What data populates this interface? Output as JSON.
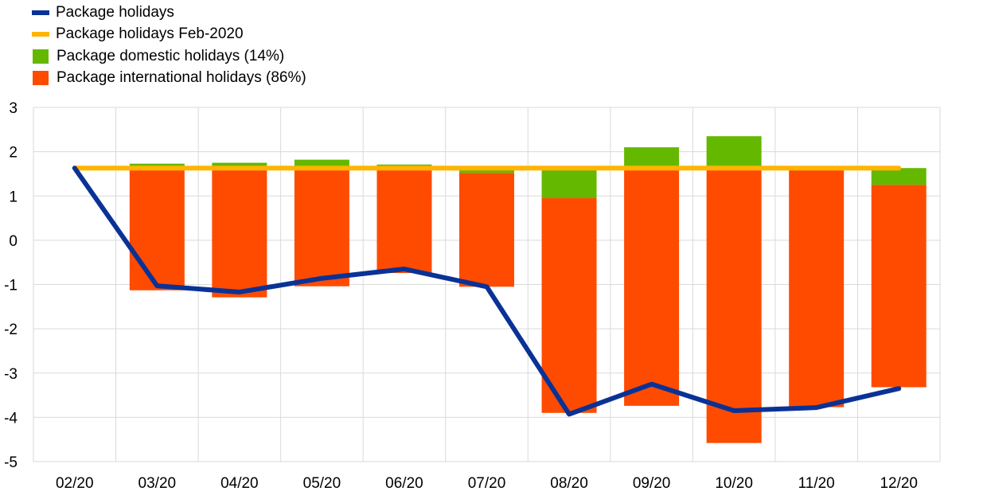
{
  "colors": {
    "package_holidays": "#0a3296",
    "feb2020": "#ffb400",
    "domestic": "#65b800",
    "international": "#ff4b00",
    "grid": "#d9d9d9"
  },
  "legend": [
    {
      "label": "Package holidays",
      "kind": "line",
      "color_key": "package_holidays"
    },
    {
      "label": "Package holidays Feb-2020",
      "kind": "line",
      "color_key": "feb2020"
    },
    {
      "label": "Package domestic holidays (14%)",
      "kind": "box",
      "color_key": "domestic"
    },
    {
      "label": "Package international holidays (86%)",
      "kind": "box",
      "color_key": "international"
    }
  ],
  "chart_data": {
    "type": "bar",
    "categories": [
      "02/20",
      "03/20",
      "04/20",
      "05/20",
      "06/20",
      "07/20",
      "08/20",
      "09/20",
      "10/20",
      "11/20",
      "12/20"
    ],
    "ylim": [
      -5,
      3
    ],
    "yticks": [
      3,
      2,
      1,
      0,
      -1,
      -2,
      -3,
      -4,
      -5
    ],
    "grid": true,
    "legend_position": "top-left",
    "series": [
      {
        "name": "Package domestic holidays (14%)",
        "kind": "bar-segment",
        "starts": [
          null,
          1.65,
          1.65,
          1.65,
          1.65,
          1.52,
          0.95,
          1.68,
          1.68,
          1.62,
          1.25
        ],
        "ends": [
          null,
          1.73,
          1.75,
          1.82,
          1.71,
          1.62,
          1.62,
          2.1,
          2.35,
          1.62,
          1.63
        ]
      },
      {
        "name": "Package international holidays (86%)",
        "kind": "bar-segment",
        "starts": [
          null,
          -1.13,
          -1.29,
          -1.04,
          -0.74,
          -1.05,
          -3.9,
          -3.74,
          -4.58,
          -3.77,
          -3.32
        ],
        "ends": [
          null,
          1.65,
          1.65,
          1.65,
          1.65,
          1.52,
          0.95,
          1.68,
          1.68,
          1.62,
          1.25
        ]
      },
      {
        "name": "Package holidays",
        "kind": "line",
        "values": [
          1.63,
          -1.03,
          -1.17,
          -0.86,
          -0.65,
          -1.05,
          -3.93,
          -3.25,
          -3.85,
          -3.78,
          -3.35
        ]
      },
      {
        "name": "Package holidays Feb-2020",
        "kind": "line",
        "values": [
          1.63,
          1.63,
          1.63,
          1.63,
          1.63,
          1.63,
          1.63,
          1.63,
          1.63,
          1.63,
          1.63
        ]
      }
    ]
  }
}
